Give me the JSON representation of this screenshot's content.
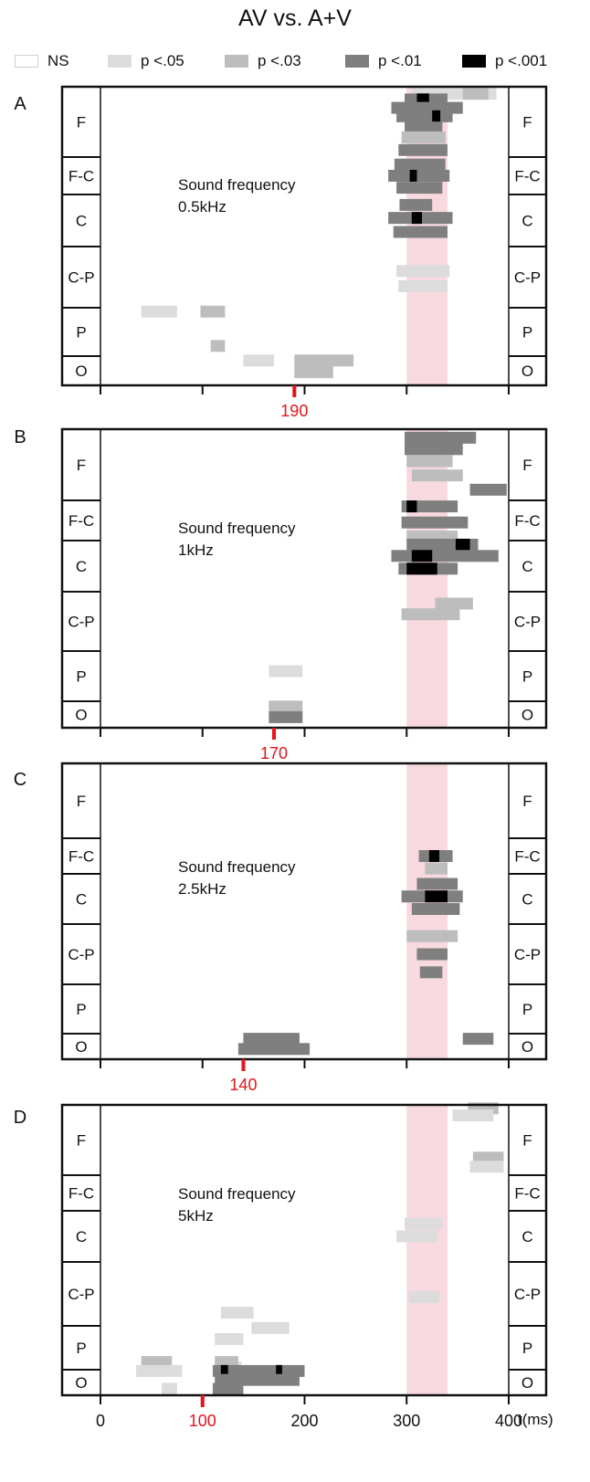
{
  "title": "AV vs. A+V",
  "legend": [
    {
      "label": "NS",
      "color": "#ffffff"
    },
    {
      "label": "p <.05",
      "color": "#dcdcdc"
    },
    {
      "label": "p <.03",
      "color": "#bdbdbd"
    },
    {
      "label": "p <.01",
      "color": "#7f7f7f"
    },
    {
      "label": "p <.001",
      "color": "#000000"
    }
  ],
  "highlight_color": "#f7d9df",
  "marker_color": "#e8131b",
  "chart_data": [
    {
      "type": "heatmap",
      "panel": "A",
      "annotation": [
        "Sound frequency",
        "0.5kHz"
      ],
      "regions": [
        "F",
        "F-C",
        "C",
        "C-P",
        "P",
        "O"
      ],
      "xlim": [
        0,
        400
      ],
      "highlight_window": [
        300,
        340
      ],
      "marker": 190,
      "marker_label": "190",
      "tick_labels": [],
      "xlabel": "",
      "clusters": [
        {
          "region": "F",
          "pos": 0.1,
          "t0": 305,
          "t1": 388,
          "level": 1
        },
        {
          "region": "F",
          "pos": 0.1,
          "t0": 355,
          "t1": 380,
          "level": 2
        },
        {
          "region": "F",
          "pos": 0.18,
          "t0": 298,
          "t1": 340,
          "level": 3
        },
        {
          "region": "F",
          "pos": 0.18,
          "t0": 310,
          "t1": 322,
          "level": 4
        },
        {
          "region": "F",
          "pos": 0.3,
          "t0": 285,
          "t1": 355,
          "level": 3
        },
        {
          "region": "F",
          "pos": 0.42,
          "t0": 290,
          "t1": 345,
          "level": 3
        },
        {
          "region": "F",
          "pos": 0.42,
          "t0": 325,
          "t1": 333,
          "level": 4
        },
        {
          "region": "F",
          "pos": 0.58,
          "t0": 298,
          "t1": 335,
          "level": 3
        },
        {
          "region": "F",
          "pos": 0.72,
          "t0": 295,
          "t1": 338,
          "level": 2
        },
        {
          "region": "F",
          "pos": 0.9,
          "t0": 292,
          "t1": 340,
          "level": 3
        },
        {
          "region": "F-C",
          "pos": 0.2,
          "t0": 288,
          "t1": 338,
          "level": 3
        },
        {
          "region": "F-C",
          "pos": 0.5,
          "t0": 282,
          "t1": 342,
          "level": 3
        },
        {
          "region": "F-C",
          "pos": 0.5,
          "t0": 303,
          "t1": 310,
          "level": 4
        },
        {
          "region": "F-C",
          "pos": 0.82,
          "t0": 290,
          "t1": 335,
          "level": 3
        },
        {
          "region": "C",
          "pos": 0.2,
          "t0": 293,
          "t1": 325,
          "level": 3
        },
        {
          "region": "C",
          "pos": 0.45,
          "t0": 282,
          "t1": 345,
          "level": 3
        },
        {
          "region": "C",
          "pos": 0.45,
          "t0": 305,
          "t1": 315,
          "level": 4
        },
        {
          "region": "C",
          "pos": 0.72,
          "t0": 287,
          "t1": 340,
          "level": 3
        },
        {
          "region": "C-P",
          "pos": 0.4,
          "t0": 290,
          "t1": 342,
          "level": 1
        },
        {
          "region": "C-P",
          "pos": 0.65,
          "t0": 292,
          "t1": 340,
          "level": 1
        },
        {
          "region": "P",
          "pos": 0.08,
          "t0": 40,
          "t1": 75,
          "level": 1
        },
        {
          "region": "P",
          "pos": 0.08,
          "t0": 98,
          "t1": 122,
          "level": 2
        },
        {
          "region": "O",
          "pos": -0.35,
          "t0": 108,
          "t1": 122,
          "level": 2
        },
        {
          "region": "O",
          "pos": 0.15,
          "t0": 140,
          "t1": 170,
          "level": 1
        },
        {
          "region": "O",
          "pos": 0.15,
          "t0": 190,
          "t1": 248,
          "level": 2
        },
        {
          "region": "O",
          "pos": 0.55,
          "t0": 190,
          "t1": 228,
          "level": 2
        }
      ]
    },
    {
      "type": "heatmap",
      "panel": "B",
      "annotation": [
        "Sound frequency",
        "1kHz"
      ],
      "regions": [
        "F",
        "F-C",
        "C",
        "C-P",
        "P",
        "O"
      ],
      "xlim": [
        0,
        400
      ],
      "highlight_window": [
        300,
        340
      ],
      "marker": 170,
      "marker_label": "170",
      "tick_labels": [],
      "xlabel": "",
      "clusters": [
        {
          "region": "F",
          "pos": 0.12,
          "t0": 298,
          "t1": 368,
          "level": 3
        },
        {
          "region": "F",
          "pos": 0.28,
          "t0": 298,
          "t1": 355,
          "level": 3
        },
        {
          "region": "F",
          "pos": 0.45,
          "t0": 300,
          "t1": 345,
          "level": 2
        },
        {
          "region": "F",
          "pos": 0.65,
          "t0": 305,
          "t1": 355,
          "level": 2
        },
        {
          "region": "F",
          "pos": 0.85,
          "t0": 362,
          "t1": 398,
          "level": 3
        },
        {
          "region": "F-C",
          "pos": 0.15,
          "t0": 295,
          "t1": 350,
          "level": 3
        },
        {
          "region": "F-C",
          "pos": 0.15,
          "t0": 300,
          "t1": 310,
          "level": 4
        },
        {
          "region": "F-C",
          "pos": 0.55,
          "t0": 295,
          "t1": 360,
          "level": 3
        },
        {
          "region": "F-C",
          "pos": 0.9,
          "t0": 300,
          "t1": 350,
          "level": 2
        },
        {
          "region": "C",
          "pos": 0.08,
          "t0": 300,
          "t1": 370,
          "level": 3
        },
        {
          "region": "C",
          "pos": 0.08,
          "t0": 348,
          "t1": 362,
          "level": 4
        },
        {
          "region": "C",
          "pos": 0.3,
          "t0": 285,
          "t1": 390,
          "level": 3
        },
        {
          "region": "C",
          "pos": 0.3,
          "t0": 305,
          "t1": 325,
          "level": 4
        },
        {
          "region": "C",
          "pos": 0.55,
          "t0": 292,
          "t1": 350,
          "level": 3
        },
        {
          "region": "C",
          "pos": 0.55,
          "t0": 300,
          "t1": 330,
          "level": 4
        },
        {
          "region": "C-P",
          "pos": 0.2,
          "t0": 328,
          "t1": 365,
          "level": 2
        },
        {
          "region": "C-P",
          "pos": 0.38,
          "t0": 295,
          "t1": 352,
          "level": 2
        },
        {
          "region": "P",
          "pos": 0.4,
          "t0": 165,
          "t1": 198,
          "level": 1
        },
        {
          "region": "O",
          "pos": 0.2,
          "t0": 165,
          "t1": 198,
          "level": 2
        },
        {
          "region": "O",
          "pos": 0.6,
          "t0": 165,
          "t1": 198,
          "level": 3
        }
      ]
    },
    {
      "type": "heatmap",
      "panel": "C",
      "annotation": [
        "Sound frequency",
        "2.5kHz"
      ],
      "regions": [
        "F",
        "F-C",
        "C",
        "C-P",
        "P",
        "O"
      ],
      "xlim": [
        0,
        400
      ],
      "highlight_window": [
        300,
        340
      ],
      "marker": 140,
      "marker_label": "140",
      "tick_labels": [],
      "xlabel": "",
      "clusters": [
        {
          "region": "F-C",
          "pos": 0.5,
          "t0": 312,
          "t1": 345,
          "level": 3
        },
        {
          "region": "F-C",
          "pos": 0.5,
          "t0": 322,
          "t1": 332,
          "level": 4
        },
        {
          "region": "F-C",
          "pos": 0.85,
          "t0": 318,
          "t1": 340,
          "level": 2
        },
        {
          "region": "C",
          "pos": 0.2,
          "t0": 310,
          "t1": 350,
          "level": 3
        },
        {
          "region": "C",
          "pos": 0.45,
          "t0": 295,
          "t1": 355,
          "level": 3
        },
        {
          "region": "C",
          "pos": 0.45,
          "t0": 318,
          "t1": 340,
          "level": 4
        },
        {
          "region": "C",
          "pos": 0.7,
          "t0": 305,
          "t1": 352,
          "level": 3
        },
        {
          "region": "C-P",
          "pos": 0.2,
          "t0": 300,
          "t1": 350,
          "level": 2
        },
        {
          "region": "C-P",
          "pos": 0.5,
          "t0": 310,
          "t1": 340,
          "level": 3
        },
        {
          "region": "C-P",
          "pos": 0.8,
          "t0": 313,
          "t1": 335,
          "level": 3
        },
        {
          "region": "O",
          "pos": 0.2,
          "t0": 140,
          "t1": 195,
          "level": 3
        },
        {
          "region": "O",
          "pos": 0.2,
          "t0": 355,
          "t1": 385,
          "level": 3
        },
        {
          "region": "O",
          "pos": 0.6,
          "t0": 135,
          "t1": 205,
          "level": 3
        }
      ]
    },
    {
      "type": "heatmap",
      "panel": "D",
      "annotation": [
        "Sound frequency",
        "5kHz"
      ],
      "regions": [
        "F",
        "F-C",
        "C",
        "C-P",
        "P",
        "O"
      ],
      "xlim": [
        0,
        400
      ],
      "highlight_window": [
        300,
        340
      ],
      "marker": 100,
      "marker_label": "100",
      "tick_labels": [
        "0",
        "100",
        "200",
        "300",
        "400"
      ],
      "xlabel": "t(ms)",
      "clusters": [
        {
          "region": "F",
          "pos": 0.05,
          "t0": 360,
          "t1": 390,
          "level": 2
        },
        {
          "region": "F",
          "pos": 0.15,
          "t0": 345,
          "t1": 385,
          "level": 1
        },
        {
          "region": "F",
          "pos": 0.75,
          "t0": 365,
          "t1": 395,
          "level": 2
        },
        {
          "region": "F",
          "pos": 0.88,
          "t0": 362,
          "t1": 395,
          "level": 1
        },
        {
          "region": "C",
          "pos": 0.25,
          "t0": 298,
          "t1": 335,
          "level": 1
        },
        {
          "region": "C",
          "pos": 0.5,
          "t0": 290,
          "t1": 330,
          "level": 1
        },
        {
          "region": "C-P",
          "pos": 0.55,
          "t0": 302,
          "t1": 332,
          "level": 1
        },
        {
          "region": "P",
          "pos": -0.3,
          "t0": 118,
          "t1": 150,
          "level": 1
        },
        {
          "region": "P",
          "pos": 0.05,
          "t0": 148,
          "t1": 185,
          "level": 1
        },
        {
          "region": "P",
          "pos": 0.3,
          "t0": 112,
          "t1": 140,
          "level": 1
        },
        {
          "region": "P",
          "pos": 0.95,
          "t0": 112,
          "t1": 138,
          "level": 1
        },
        {
          "region": "O",
          "pos": -0.3,
          "t0": 40,
          "t1": 70,
          "level": 2
        },
        {
          "region": "O",
          "pos": -0.3,
          "t0": 112,
          "t1": 135,
          "level": 2
        },
        {
          "region": "O",
          "pos": 0.05,
          "t0": 35,
          "t1": 80,
          "level": 1
        },
        {
          "region": "O",
          "pos": 0.05,
          "t0": 110,
          "t1": 200,
          "level": 3
        },
        {
          "region": "O",
          "pos": 0.05,
          "t0": 118,
          "t1": 125,
          "level": 4
        },
        {
          "region": "O",
          "pos": 0.05,
          "t0": 172,
          "t1": 178,
          "level": 4
        },
        {
          "region": "O",
          "pos": 0.4,
          "t0": 112,
          "t1": 195,
          "level": 3
        },
        {
          "region": "O",
          "pos": 0.75,
          "t0": 60,
          "t1": 75,
          "level": 1
        },
        {
          "region": "O",
          "pos": 0.75,
          "t0": 110,
          "t1": 140,
          "level": 3
        }
      ]
    }
  ]
}
